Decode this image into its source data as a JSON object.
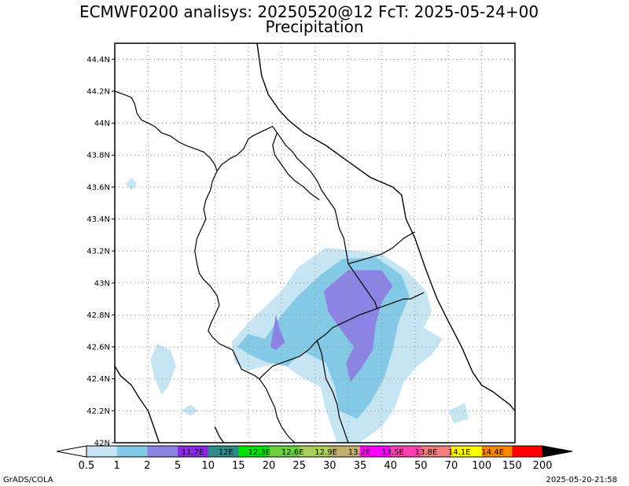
{
  "header": {
    "title_line1": "ECMWF0200 analisys: 20250520@12 FcT: 2025-05-24+00",
    "title_line2": "Precipitation"
  },
  "footer": {
    "left": "GrADS/COLA",
    "right": "2025-05-20-21:58"
  },
  "chart_data": {
    "type": "heatmap",
    "title": "ECMWF0200 analisys: 20250520@12 FcT: 2025-05-24+00",
    "subtitle": "Precipitation",
    "lon_range": [
      11.0,
      14.6
    ],
    "lat_range": [
      42.0,
      44.5
    ],
    "y_ticks": [
      "42N",
      "42.2N",
      "42.4N",
      "42.6N",
      "42.8N",
      "43N",
      "43.2N",
      "43.4N",
      "43.6N",
      "43.8N",
      "44N",
      "44.2N",
      "44.4N"
    ],
    "y_tick_values": [
      42.0,
      42.2,
      42.4,
      42.6,
      42.8,
      43.0,
      43.2,
      43.4,
      43.6,
      43.8,
      44.0,
      44.2,
      44.4
    ],
    "grid_lon": [
      11.3,
      11.6,
      11.9,
      12.2,
      12.5,
      12.8,
      13.1,
      13.4,
      13.7,
      14.0,
      14.3
    ],
    "grid": true,
    "colorbar": {
      "levels": [
        "0.5",
        "1",
        "2",
        "5",
        "10",
        "15",
        "20",
        "25",
        "30",
        "35",
        "40",
        "50",
        "70",
        "100",
        "150",
        "200"
      ],
      "colors": [
        "#ffffff",
        "#c5e5f3",
        "#84cae6",
        "#8c84e2",
        "#8a2be2",
        "#2e8b8b",
        "#00e000",
        "#6ad040",
        "#a8d05a",
        "#c0b070",
        "#ff00ff",
        "#ff40b0",
        "#f08080",
        "#ffff00",
        "#ff8800",
        "#ff0000",
        "#b00000",
        "#700000",
        "#000000"
      ],
      "inner_labels": [
        "11.7E",
        "12E",
        "12.3E",
        "12.6E",
        "12.9E",
        "13.2E",
        "13.5E",
        "13.8E",
        "14.1E",
        "14.4E"
      ]
    },
    "precip_regions": [
      {
        "level": "1-2",
        "lon_lat": [
          [
            11.1,
            43.62
          ],
          [
            11.15,
            43.58
          ],
          [
            11.2,
            43.62
          ],
          [
            11.15,
            43.66
          ]
        ]
      },
      {
        "level": "1-2",
        "lon_lat": [
          [
            11.38,
            42.62
          ],
          [
            11.5,
            42.58
          ],
          [
            11.55,
            42.48
          ],
          [
            11.48,
            42.35
          ],
          [
            11.42,
            42.3
          ],
          [
            11.36,
            42.4
          ],
          [
            11.32,
            42.52
          ]
        ]
      },
      {
        "level": "1-2",
        "lon_lat": [
          [
            11.6,
            42.2
          ],
          [
            11.68,
            42.17
          ],
          [
            11.75,
            42.2
          ],
          [
            11.68,
            42.24
          ]
        ]
      },
      {
        "level": "1-2",
        "lon_lat": [
          [
            12.05,
            42.63
          ],
          [
            12.2,
            42.75
          ],
          [
            12.35,
            42.85
          ],
          [
            12.5,
            42.95
          ],
          [
            12.65,
            43.1
          ],
          [
            12.9,
            43.22
          ],
          [
            13.2,
            43.2
          ],
          [
            13.4,
            43.18
          ],
          [
            13.62,
            43.08
          ],
          [
            13.8,
            42.95
          ],
          [
            13.85,
            42.82
          ],
          [
            13.78,
            42.72
          ],
          [
            13.95,
            42.65
          ],
          [
            13.85,
            42.55
          ],
          [
            13.72,
            42.48
          ],
          [
            13.6,
            42.38
          ],
          [
            13.52,
            42.22
          ],
          [
            13.4,
            42.1
          ],
          [
            13.2,
            42.0
          ],
          [
            13.0,
            42.0
          ],
          [
            12.9,
            42.2
          ],
          [
            12.85,
            42.35
          ],
          [
            12.7,
            42.4
          ],
          [
            12.5,
            42.5
          ],
          [
            12.35,
            42.48
          ],
          [
            12.2,
            42.45
          ],
          [
            12.08,
            42.5
          ]
        ]
      },
      {
        "level": "1-2",
        "lon_lat": [
          [
            14.0,
            42.2
          ],
          [
            14.15,
            42.25
          ],
          [
            14.18,
            42.15
          ],
          [
            14.05,
            42.12
          ]
        ]
      },
      {
        "level": "2-5",
        "lon_lat": [
          [
            12.1,
            42.6
          ],
          [
            12.2,
            42.68
          ],
          [
            12.35,
            42.65
          ],
          [
            12.5,
            42.8
          ],
          [
            12.65,
            42.92
          ],
          [
            12.85,
            43.05
          ],
          [
            13.05,
            43.15
          ],
          [
            13.35,
            43.16
          ],
          [
            13.58,
            43.05
          ],
          [
            13.65,
            42.92
          ],
          [
            13.55,
            42.75
          ],
          [
            13.5,
            42.58
          ],
          [
            13.42,
            42.4
          ],
          [
            13.3,
            42.25
          ],
          [
            13.18,
            42.15
          ],
          [
            13.02,
            42.2
          ],
          [
            12.98,
            42.35
          ],
          [
            12.9,
            42.5
          ],
          [
            12.7,
            42.57
          ],
          [
            12.55,
            42.48
          ],
          [
            12.38,
            42.5
          ],
          [
            12.22,
            42.55
          ]
        ]
      },
      {
        "level": "5-10",
        "lon_lat": [
          [
            12.4,
            42.6
          ],
          [
            12.45,
            42.58
          ],
          [
            12.53,
            42.63
          ],
          [
            12.48,
            42.72
          ],
          [
            12.45,
            42.8
          ]
        ]
      },
      {
        "level": "5-10",
        "lon_lat": [
          [
            12.88,
            42.95
          ],
          [
            13.1,
            43.08
          ],
          [
            13.4,
            43.08
          ],
          [
            13.5,
            42.98
          ],
          [
            13.4,
            42.88
          ],
          [
            13.35,
            42.75
          ],
          [
            13.32,
            42.58
          ],
          [
            13.2,
            42.45
          ],
          [
            13.12,
            42.38
          ],
          [
            13.08,
            42.5
          ],
          [
            13.15,
            42.6
          ],
          [
            13.02,
            42.72
          ],
          [
            12.92,
            42.82
          ]
        ]
      }
    ]
  },
  "map": {
    "coastline": [
      [
        11.0,
        42.48
      ],
      [
        11.05,
        42.42
      ],
      [
        11.15,
        42.36
      ],
      [
        11.22,
        42.28
      ],
      [
        11.3,
        42.2
      ],
      [
        11.34,
        42.12
      ],
      [
        11.38,
        42.04
      ],
      [
        11.4,
        42.0
      ]
    ],
    "coastline_south": [
      [
        11.98,
        42.0
      ],
      [
        11.94,
        42.04
      ],
      [
        11.9,
        42.1
      ]
    ],
    "adriatic": [
      [
        12.28,
        44.5
      ],
      [
        12.32,
        44.3
      ],
      [
        12.38,
        44.18
      ],
      [
        12.48,
        44.08
      ],
      [
        12.56,
        44.02
      ],
      [
        12.7,
        43.94
      ],
      [
        12.9,
        43.86
      ],
      [
        13.1,
        43.76
      ],
      [
        13.3,
        43.66
      ],
      [
        13.5,
        43.6
      ],
      [
        13.58,
        43.55
      ],
      [
        13.62,
        43.4
      ],
      [
        13.7,
        43.28
      ],
      [
        13.8,
        43.08
      ],
      [
        13.9,
        42.9
      ],
      [
        14.0,
        42.76
      ],
      [
        14.12,
        42.6
      ],
      [
        14.22,
        42.44
      ],
      [
        14.3,
        42.36
      ],
      [
        14.4,
        42.32
      ],
      [
        14.55,
        42.24
      ],
      [
        14.6,
        42.2
      ]
    ],
    "borders": [
      [
        [
          11.0,
          44.2
        ],
        [
          11.08,
          44.18
        ],
        [
          11.15,
          44.16
        ],
        [
          11.18,
          44.12
        ],
        [
          11.2,
          44.06
        ],
        [
          11.24,
          44.02
        ],
        [
          11.3,
          44.0
        ],
        [
          11.36,
          43.98
        ],
        [
          11.42,
          43.94
        ],
        [
          11.5,
          43.92
        ],
        [
          11.58,
          43.88
        ],
        [
          11.64,
          43.86
        ],
        [
          11.72,
          43.84
        ],
        [
          11.8,
          43.82
        ],
        [
          11.86,
          43.78
        ],
        [
          11.9,
          43.74
        ],
        [
          11.92,
          43.7
        ]
      ],
      [
        [
          11.92,
          43.7
        ],
        [
          11.88,
          43.64
        ],
        [
          11.86,
          43.58
        ],
        [
          11.82,
          43.52
        ],
        [
          11.8,
          43.46
        ],
        [
          11.82,
          43.4
        ],
        [
          11.78,
          43.34
        ],
        [
          11.74,
          43.28
        ],
        [
          11.72,
          43.2
        ],
        [
          11.74,
          43.12
        ],
        [
          11.76,
          43.06
        ],
        [
          11.8,
          43.02
        ],
        [
          11.86,
          42.98
        ],
        [
          11.92,
          42.92
        ],
        [
          11.94,
          42.86
        ],
        [
          11.9,
          42.8
        ],
        [
          11.86,
          42.74
        ],
        [
          11.84,
          42.7
        ],
        [
          11.88,
          42.66
        ],
        [
          11.94,
          42.62
        ],
        [
          12.0,
          42.6
        ],
        [
          12.06,
          42.58
        ],
        [
          12.1,
          42.52
        ],
        [
          12.14,
          42.46
        ],
        [
          12.2,
          42.44
        ],
        [
          12.26,
          42.42
        ],
        [
          12.3,
          42.4
        ]
      ],
      [
        [
          11.92,
          43.7
        ],
        [
          11.96,
          43.74
        ],
        [
          12.0,
          43.76
        ],
        [
          12.04,
          43.78
        ],
        [
          12.1,
          43.8
        ],
        [
          12.16,
          43.84
        ],
        [
          12.2,
          43.9
        ],
        [
          12.24,
          43.92
        ],
        [
          12.3,
          43.94
        ],
        [
          12.36,
          43.96
        ],
        [
          12.42,
          43.98
        ],
        [
          12.46,
          43.94
        ],
        [
          12.5,
          43.9
        ],
        [
          12.54,
          43.86
        ],
        [
          12.6,
          43.82
        ],
        [
          12.64,
          43.78
        ],
        [
          12.7,
          43.74
        ],
        [
          12.76,
          43.7
        ],
        [
          12.82,
          43.64
        ],
        [
          12.86,
          43.58
        ],
        [
          12.92,
          43.52
        ],
        [
          12.98,
          43.46
        ],
        [
          13.0,
          43.4
        ],
        [
          13.02,
          43.34
        ],
        [
          13.06,
          43.28
        ],
        [
          13.08,
          43.2
        ],
        [
          13.1,
          43.12
        ]
      ],
      [
        [
          12.3,
          42.4
        ],
        [
          12.36,
          42.44
        ],
        [
          12.42,
          42.48
        ],
        [
          12.5,
          42.5
        ],
        [
          12.58,
          42.52
        ],
        [
          12.66,
          42.54
        ],
        [
          12.74,
          42.58
        ],
        [
          12.82,
          42.64
        ],
        [
          12.9,
          42.68
        ],
        [
          12.96,
          42.72
        ],
        [
          13.02,
          42.74
        ],
        [
          13.08,
          42.76
        ],
        [
          13.14,
          42.78
        ],
        [
          13.2,
          42.8
        ],
        [
          13.28,
          42.82
        ],
        [
          13.36,
          42.84
        ],
        [
          13.44,
          42.86
        ],
        [
          13.52,
          42.88
        ],
        [
          13.6,
          42.9
        ],
        [
          13.66,
          42.9
        ],
        [
          13.72,
          42.92
        ],
        [
          13.78,
          42.94
        ]
      ],
      [
        [
          13.1,
          43.12
        ],
        [
          13.14,
          43.08
        ],
        [
          13.18,
          43.04
        ],
        [
          13.22,
          43.0
        ],
        [
          13.26,
          42.96
        ],
        [
          13.3,
          42.92
        ],
        [
          13.34,
          42.88
        ],
        [
          13.36,
          42.84
        ]
      ],
      [
        [
          13.1,
          43.12
        ],
        [
          13.2,
          43.14
        ],
        [
          13.3,
          43.16
        ],
        [
          13.4,
          43.18
        ],
        [
          13.5,
          43.22
        ],
        [
          13.6,
          43.28
        ],
        [
          13.7,
          43.32
        ]
      ],
      [
        [
          12.3,
          42.4
        ],
        [
          12.36,
          42.34
        ],
        [
          12.4,
          42.28
        ],
        [
          12.44,
          42.22
        ],
        [
          12.46,
          42.16
        ],
        [
          12.5,
          42.1
        ],
        [
          12.56,
          42.04
        ],
        [
          12.62,
          42.0
        ]
      ],
      [
        [
          12.82,
          42.64
        ],
        [
          12.86,
          42.56
        ],
        [
          12.88,
          42.48
        ],
        [
          12.9,
          42.4
        ],
        [
          12.96,
          42.32
        ],
        [
          13.0,
          42.24
        ],
        [
          13.02,
          42.16
        ],
        [
          13.06,
          42.08
        ],
        [
          13.1,
          42.0
        ]
      ],
      [
        [
          12.46,
          43.94
        ],
        [
          12.42,
          43.86
        ],
        [
          12.44,
          43.8
        ],
        [
          12.48,
          43.76
        ],
        [
          12.52,
          43.72
        ],
        [
          12.56,
          43.68
        ]
      ],
      [
        [
          12.56,
          43.68
        ],
        [
          12.62,
          43.64
        ],
        [
          12.7,
          43.6
        ],
        [
          12.76,
          43.56
        ],
        [
          12.84,
          43.52
        ]
      ]
    ]
  }
}
